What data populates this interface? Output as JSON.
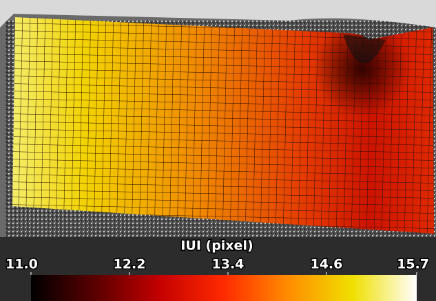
{
  "chart_data": {
    "type": "colormap",
    "colorbar": {
      "label": "IUI (pixel)",
      "clim": [
        11.0,
        15.7
      ],
      "ticks": [
        {
          "value": 11.0,
          "label": "11.0"
        },
        12.2,
        13.4,
        14.6,
        15.7
      ],
      "colors": [
        "#000000",
        "#5a0000",
        "#c40000",
        "#ff2a00",
        "#ff8c00",
        "#f0e000",
        "#ffffff"
      ]
    }
  }
}
